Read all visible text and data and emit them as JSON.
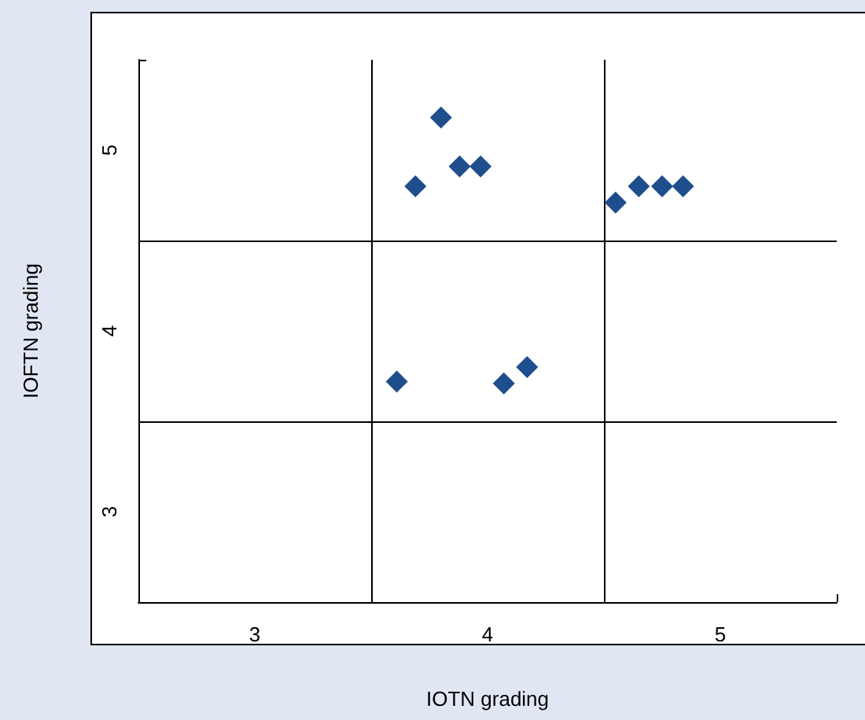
{
  "chart_data": {
    "type": "scatter",
    "xlabel": "IOTN grading",
    "ylabel": "IOFTN grading",
    "x": [
      3.8,
      3.69,
      3.88,
      3.97,
      4.55,
      4.65,
      4.75,
      4.84,
      3.61,
      4.07,
      4.17
    ],
    "series": [
      {
        "color": "#1f4e8c",
        "values": [
          5.18,
          4.8,
          4.91,
          4.91,
          4.71,
          4.8,
          4.8,
          4.8,
          3.72,
          3.71,
          3.8
        ]
      }
    ],
    "xlim": [
      2.5,
      5.5
    ],
    "ylim": [
      2.5,
      5.5
    ],
    "xticks": [
      {
        "value": 2.5,
        "label": null
      },
      3,
      {
        "value": 3.5,
        "label": null
      },
      4,
      {
        "value": 4.5,
        "label": null
      },
      5,
      {
        "value": 5.5,
        "label": null
      }
    ],
    "yticks": [
      {
        "value": 2.5,
        "label": null
      },
      3,
      {
        "value": 3.5,
        "label": null
      },
      4,
      {
        "value": 4.5,
        "label": null
      },
      5,
      {
        "value": 5.5,
        "label": null
      }
    ],
    "grid": true,
    "marker": "diamond"
  }
}
